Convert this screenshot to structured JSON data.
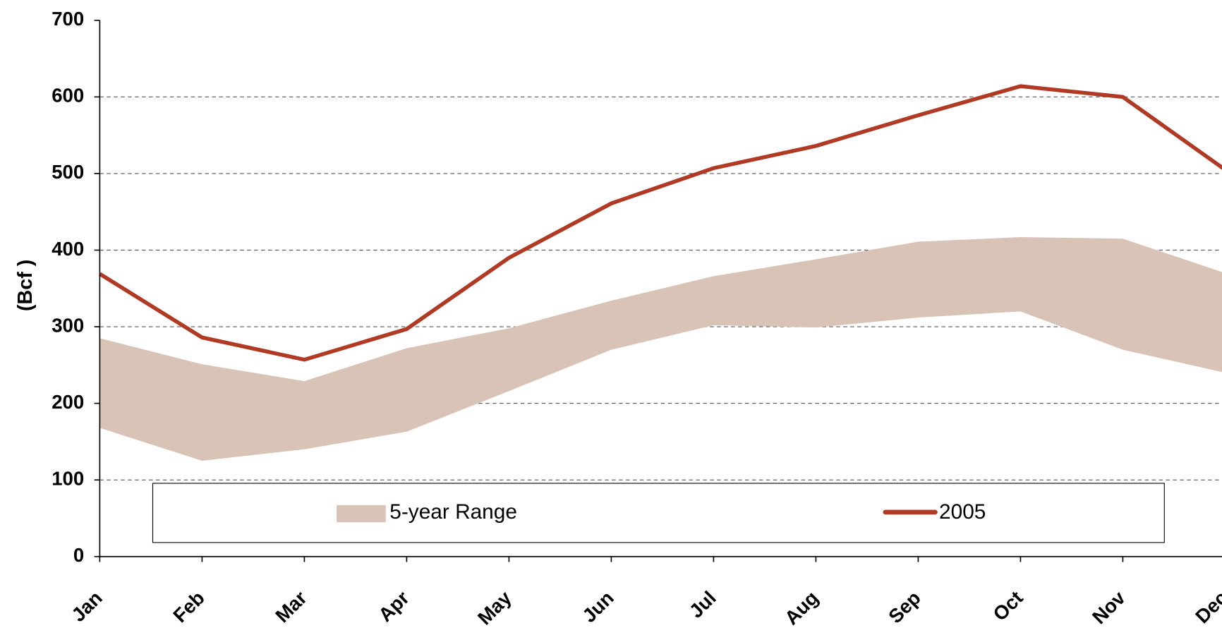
{
  "chart_data": {
    "type": "line",
    "y_label": "(Bcf )",
    "categories": [
      "Jan",
      "Feb",
      "Mar",
      "Apr",
      "May",
      "Jun",
      "Jul",
      "Aug",
      "Sep",
      "Oct",
      "Nov",
      "Dec"
    ],
    "series": [
      {
        "name": "5-year Range",
        "color": "#d9c3b6",
        "high": [
          285,
          251,
          229,
          272,
          298,
          334,
          366,
          388,
          411,
          417,
          415,
          370
        ],
        "low": [
          168,
          125,
          140,
          163,
          216,
          270,
          302,
          299,
          312,
          320,
          270,
          240
        ]
      },
      {
        "name": "2005",
        "color": "#b03a24",
        "values": [
          369,
          286,
          257,
          297,
          390,
          461,
          507,
          536,
          576,
          614,
          600,
          505
        ]
      }
    ],
    "ylim": [
      0,
      700
    ],
    "yticks": [
      0,
      100,
      200,
      300,
      400,
      500,
      600,
      700
    ],
    "grid": true
  }
}
